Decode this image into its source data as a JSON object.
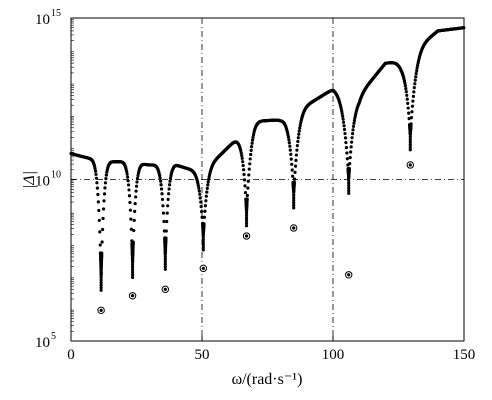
{
  "chart_data": {
    "type": "scatter",
    "xlabel": "ω/(rad·s⁻¹)",
    "ylabel": "|Δ|",
    "xlim": [
      0,
      150
    ],
    "ylim_log10": [
      5,
      15
    ],
    "y_scale": "log",
    "x_ticks": [
      {
        "value": 0,
        "label": "0"
      },
      {
        "value": 50,
        "label": "50"
      },
      {
        "value": 100,
        "label": "100"
      },
      {
        "value": 150,
        "label": "150"
      }
    ],
    "y_ticks": [
      {
        "exponent": 5,
        "base": "10",
        "exp_label": "5"
      },
      {
        "exponent": 10,
        "base": "10",
        "exp_label": "10"
      },
      {
        "exponent": 15,
        "base": "10",
        "exp_label": "15"
      }
    ],
    "reference_lines": {
      "vertical": [
        50,
        100
      ],
      "horizontal_log10": [
        10
      ]
    },
    "grid": false,
    "legend": "none",
    "colors": {
      "points": "#000000",
      "axes": "#000000",
      "background": "#ffffff"
    },
    "envelope_log10": [
      [
        0,
        10.8
      ],
      [
        12,
        10.55
      ],
      [
        20,
        10.55
      ],
      [
        30,
        10.45
      ],
      [
        40,
        10.45
      ],
      [
        50,
        10.2
      ],
      [
        60,
        11.0
      ],
      [
        70,
        11.8
      ],
      [
        80,
        11.85
      ],
      [
        90,
        12.3
      ],
      [
        100,
        12.8
      ],
      [
        110,
        12.6
      ],
      [
        120,
        13.6
      ],
      [
        126,
        13.65
      ],
      [
        140,
        14.6
      ],
      [
        150,
        14.7
      ]
    ],
    "valleys": [
      {
        "omega": 11.5,
        "lobe_top_log10": 10.55,
        "dip_log10": 7.05,
        "min_log10": 5.95
      },
      {
        "omega": 23.5,
        "lobe_top_log10": 10.55,
        "dip_log10": 7.45,
        "min_log10": 6.4
      },
      {
        "omega": 36.0,
        "lobe_top_log10": 10.45,
        "dip_log10": 7.7,
        "min_log10": 6.6
      },
      {
        "omega": 50.5,
        "lobe_top_log10": 10.25,
        "dip_log10": 8.3,
        "min_log10": 7.25
      },
      {
        "omega": 67.0,
        "lobe_top_log10": 11.1,
        "dip_log10": 9.05,
        "min_log10": 8.25
      },
      {
        "omega": 85.0,
        "lobe_top_log10": 11.8,
        "dip_log10": 9.6,
        "min_log10": 8.5
      },
      {
        "omega": 106.0,
        "lobe_top_log10": 12.55,
        "dip_log10": 10.05,
        "min_log10": 7.05
      },
      {
        "omega": 129.5,
        "lobe_top_log10": 13.6,
        "dip_log10": 11.4,
        "min_log10": 10.45
      }
    ]
  }
}
